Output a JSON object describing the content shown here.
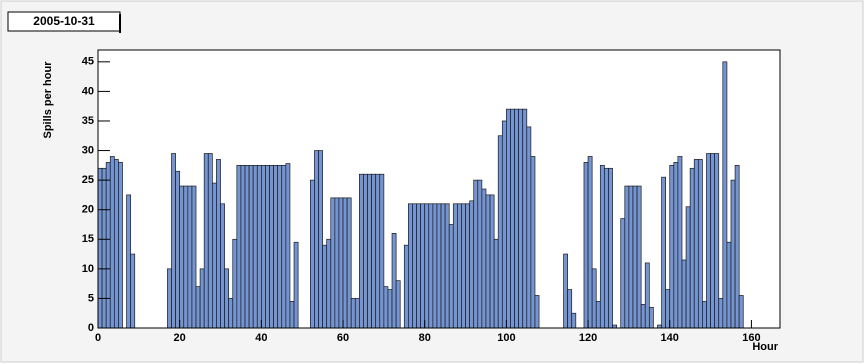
{
  "chart_data": {
    "type": "histogram",
    "title": "2005-10-31",
    "xlabel": "Hour",
    "ylabel": "Spills per hour",
    "color": "#7595d2",
    "bins": [
      0,
      1,
      2,
      3,
      4,
      5,
      6,
      7,
      8,
      9,
      10,
      11,
      12,
      13,
      14,
      15,
      16,
      17,
      18,
      19,
      20,
      21,
      22,
      23,
      24,
      25,
      26,
      27,
      28,
      29,
      30,
      31,
      32,
      33,
      34,
      35,
      36,
      37,
      38,
      39,
      40,
      41,
      42,
      43,
      44,
      45,
      46,
      47,
      48,
      49,
      50,
      51,
      52,
      53,
      54,
      55,
      56,
      57,
      58,
      59,
      60,
      61,
      62,
      63,
      64,
      65,
      66,
      67,
      68,
      69,
      70,
      71,
      72,
      73,
      74,
      75,
      76,
      77,
      78,
      79,
      80,
      81,
      82,
      83,
      84,
      85,
      86,
      87,
      88,
      89,
      90,
      91,
      92,
      93,
      94,
      95,
      96,
      97,
      98,
      99,
      100,
      101,
      102,
      103,
      104,
      105,
      106,
      107,
      108,
      109,
      110,
      111,
      112,
      113,
      114,
      115,
      116,
      117,
      118,
      119,
      120,
      121,
      122,
      123,
      124,
      125,
      126,
      127,
      128,
      129,
      130,
      131,
      132,
      133,
      134,
      135,
      136,
      137,
      138,
      139,
      140,
      141,
      142,
      143,
      144,
      145,
      146,
      147,
      148,
      149,
      150,
      151,
      152,
      153,
      154,
      155,
      156,
      157,
      158,
      159,
      160,
      161,
      162,
      163,
      164,
      165,
      166,
      167
    ],
    "counts": [
      27,
      27,
      28,
      29,
      28.5,
      28,
      0,
      22.5,
      12.5,
      0,
      0,
      0,
      0,
      0,
      0,
      0,
      0,
      10,
      29.5,
      26.5,
      24,
      24,
      24,
      24,
      7,
      10,
      29.5,
      29.5,
      24.5,
      28.5,
      21,
      10,
      5,
      15,
      27.5,
      27.5,
      27.5,
      27.5,
      27.5,
      27.5,
      27.5,
      27.5,
      27.5,
      27.5,
      27.5,
      27.5,
      27.8,
      4.5,
      14.5,
      0,
      0,
      0,
      25,
      30,
      30,
      14,
      15,
      22,
      22,
      22,
      22,
      22,
      5,
      5,
      26,
      26,
      26,
      26,
      26,
      26,
      7,
      6.5,
      16,
      8,
      0,
      14,
      21,
      21,
      21,
      21,
      21,
      21,
      21,
      21,
      21,
      21,
      17.5,
      21,
      21,
      21,
      21,
      21.5,
      25,
      25,
      23.5,
      22.5,
      22.5,
      15,
      32.5,
      35,
      37,
      37,
      37,
      37,
      37,
      34,
      29,
      5.5,
      0,
      0,
      0,
      0,
      0,
      0,
      12.5,
      6.5,
      2.5,
      0,
      0,
      28,
      29,
      10,
      4.5,
      27.5,
      27,
      27,
      0.5,
      0,
      18.5,
      24,
      24,
      24,
      24,
      4,
      11,
      3.5,
      0,
      0.5,
      25.5,
      6.5,
      27.5,
      28,
      29,
      11.5,
      20.5,
      27,
      28.5,
      28.5,
      4.5,
      29.5,
      29.5,
      29.5,
      5,
      45,
      14.5,
      25,
      27.5,
      5.5,
      0,
      0,
      0,
      0,
      0,
      0,
      0,
      0,
      0
    ],
    "xlim": [
      0,
      167
    ],
    "ylim": [
      0,
      47
    ],
    "xticks": [
      0,
      20,
      40,
      60,
      80,
      100,
      120,
      140,
      160
    ],
    "yticks": [
      0,
      5,
      10,
      15,
      20,
      25,
      30,
      35,
      40,
      45
    ]
  }
}
